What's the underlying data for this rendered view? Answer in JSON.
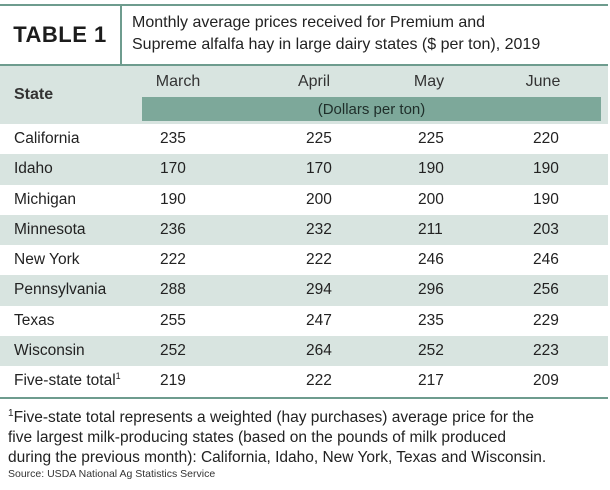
{
  "table_label": "TABLE 1",
  "caption_line1": "Monthly average prices received for Premium and",
  "caption_line2": "Supreme alfalfa hay in large dairy states ($ per ton), 2019",
  "state_header": "State",
  "months": [
    "March",
    "April",
    "May",
    "June"
  ],
  "unit_band": "(Dollars per ton)",
  "rows": [
    {
      "state": "California",
      "march": "235",
      "april": "225",
      "may": "225",
      "june": "220"
    },
    {
      "state": "Idaho",
      "march": "170",
      "april": "170",
      "may": "190",
      "june": "190"
    },
    {
      "state": "Michigan",
      "march": "190",
      "april": "200",
      "may": "200",
      "june": "190"
    },
    {
      "state": "Minnesota",
      "march": "236",
      "april": "232",
      "may": "211",
      "june": "203"
    },
    {
      "state": "New York",
      "march": "222",
      "april": "222",
      "may": "246",
      "june": "246"
    },
    {
      "state": "Pennsylvania",
      "march": "288",
      "april": "294",
      "may": "296",
      "june": "256"
    },
    {
      "state": "Texas",
      "march": "255",
      "april": "247",
      "may": "235",
      "june": "229"
    },
    {
      "state": "Wisconsin",
      "march": "252",
      "april": "264",
      "may": "252",
      "june": "223"
    },
    {
      "state": "Five-state total",
      "state_sup": "1",
      "march": "219",
      "april": "222",
      "may": "217",
      "june": "209"
    }
  ],
  "footnote_marker": "1",
  "footnote_line1": "Five-state total represents a weighted (hay purchases) average price for the",
  "footnote_line2": "five largest milk-producing states (based on the pounds of milk produced",
  "footnote_line3": "during the previous month): California, Idaho, New York, Texas and Wisconsin.",
  "source": "Source: USDA National Ag Statistics Service",
  "colors": {
    "accent": "#6e9c8e",
    "band": "#7da89a",
    "row_shade": "#d8e4e0"
  }
}
